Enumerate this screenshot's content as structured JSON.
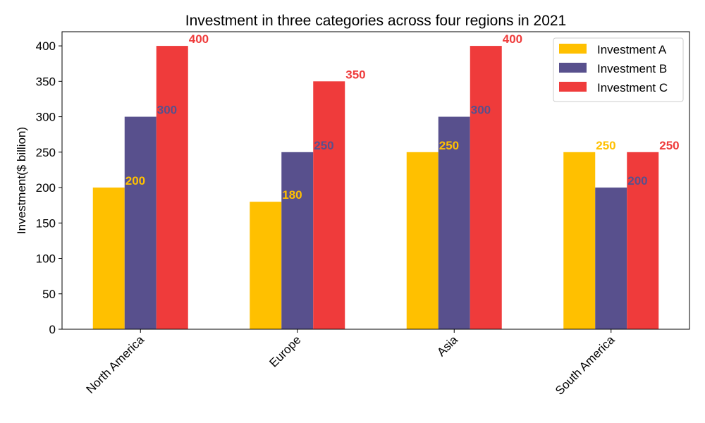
{
  "chart_data": {
    "type": "bar",
    "title": "Investment in three categories across four regions in 2021",
    "xlabel": "",
    "ylabel": "Investment($ billion)",
    "categories": [
      "North America",
      "Europe",
      "Asia",
      "South America"
    ],
    "series": [
      {
        "name": "Investment A",
        "values": [
          200,
          180,
          250,
          250
        ],
        "color": "#ffc000"
      },
      {
        "name": "Investment B",
        "values": [
          300,
          250,
          300,
          200
        ],
        "color": "#58508d"
      },
      {
        "name": "Investment C",
        "values": [
          400,
          350,
          400,
          250
        ],
        "color": "#ef3b3b"
      }
    ],
    "ylim": [
      0,
      420
    ],
    "yticks": [
      0,
      50,
      100,
      150,
      200,
      250,
      300,
      350,
      400
    ],
    "ytick_labels": [
      "0",
      "50",
      "100",
      "150",
      "200",
      "250",
      "300",
      "350",
      "400"
    ],
    "grid": false,
    "legend_position": "top-right"
  }
}
